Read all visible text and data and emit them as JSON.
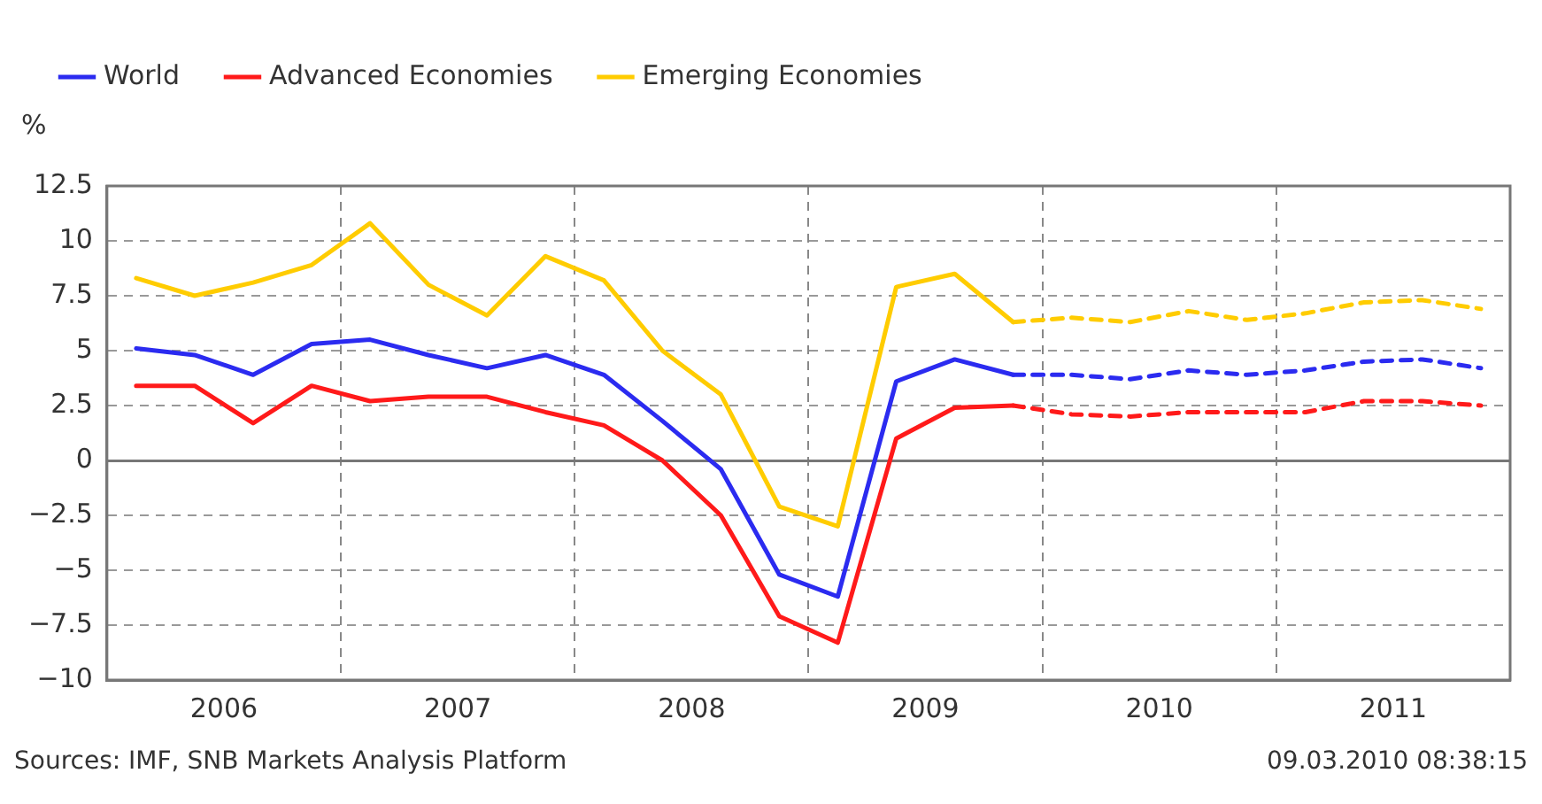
{
  "chart_data": {
    "type": "line",
    "ylabel": "%",
    "legend": "top left",
    "grid": true,
    "line_style": "solid",
    "marker": "none",
    "xlim": [
      2006,
      2012
    ],
    "xticks": [
      {
        "value": 2006.5,
        "label": "2006"
      },
      {
        "value": 2007,
        "label": null
      },
      {
        "value": 2007.5,
        "label": "2007"
      },
      {
        "value": 2008,
        "label": null
      },
      {
        "value": 2008.5,
        "label": "2008"
      },
      {
        "value": 2009,
        "label": null
      },
      {
        "value": 2009.5,
        "label": "2009"
      },
      {
        "value": 2010,
        "label": null
      },
      {
        "value": 2010.5,
        "label": "2010"
      },
      {
        "value": 2011,
        "label": null
      },
      {
        "value": 2011.5,
        "label": "2011"
      }
    ],
    "ylim": [
      -10,
      12.5
    ],
    "yticks": [
      -10,
      -7.5,
      -5,
      -2.5,
      0,
      2.5,
      5,
      7.5,
      10,
      12.5
    ],
    "series": [
      {
        "name": "World",
        "color": "#2b2bf0",
        "x": [
          2006.125,
          2006.375,
          2006.625,
          2006.875,
          2007.125,
          2007.375,
          2007.625,
          2007.875,
          2008.125,
          2008.375,
          2008.625,
          2008.875,
          2009.125,
          2009.375,
          2009.625,
          2009.875
        ],
        "values": [
          5.1,
          4.8,
          3.9,
          5.3,
          5.5,
          4.8,
          4.2,
          4.8,
          3.9,
          1.8,
          -0.4,
          -5.2,
          -6.2,
          3.6,
          4.6,
          3.9
        ]
      },
      {
        "name": "Advanced Economies",
        "color": "#ff1a1a",
        "x": [
          2006.125,
          2006.375,
          2006.625,
          2006.875,
          2007.125,
          2007.375,
          2007.625,
          2007.875,
          2008.125,
          2008.375,
          2008.625,
          2008.875,
          2009.125,
          2009.375,
          2009.625,
          2009.875
        ],
        "values": [
          3.4,
          3.4,
          1.7,
          3.4,
          2.7,
          2.9,
          2.9,
          2.2,
          1.6,
          0,
          -2.5,
          -7.1,
          -8.3,
          1.0,
          2.4,
          2.5
        ]
      },
      {
        "name": "Emerging Economies",
        "color": "#ffcc00",
        "x": [
          2006.125,
          2006.375,
          2006.625,
          2006.875,
          2007.125,
          2007.375,
          2007.625,
          2007.875,
          2008.125,
          2008.375,
          2008.625,
          2008.875,
          2009.125,
          2009.375,
          2009.625,
          2009.875
        ],
        "values": [
          8.3,
          7.5,
          8.1,
          8.9,
          10.8,
          8.0,
          6.6,
          9.3,
          8.2,
          5.0,
          3.0,
          -2.1,
          -3.0,
          7.9,
          8.5,
          6.3
        ]
      },
      {
        "color": "#2b2bf0",
        "line_style": "dashed",
        "x": [
          2009.875,
          2010.125,
          2010.375,
          2010.625,
          2010.875,
          2011.125,
          2011.375,
          2011.625,
          2011.875
        ],
        "values": [
          3.9,
          3.9,
          3.7,
          4.1,
          3.9,
          4.1,
          4.5,
          4.6,
          4.2
        ]
      },
      {
        "color": "#ff1a1a",
        "line_style": "dashed",
        "x": [
          2009.875,
          2010.125,
          2010.375,
          2010.625,
          2010.875,
          2011.125,
          2011.375,
          2011.625,
          2011.875
        ],
        "values": [
          2.5,
          2.1,
          2.0,
          2.2,
          2.2,
          2.2,
          2.7,
          2.7,
          2.5
        ]
      },
      {
        "color": "#ffcc00",
        "line_style": "dashed",
        "x": [
          2009.875,
          2010.125,
          2010.375,
          2010.625,
          2010.875,
          2011.125,
          2011.375,
          2011.625,
          2011.875
        ],
        "values": [
          6.3,
          6.5,
          6.3,
          6.8,
          6.4,
          6.7,
          7.2,
          7.3,
          6.9
        ]
      }
    ],
    "annotations": [
      "Sources: IMF, SNB Markets Analysis Platform",
      "09.03.2010 08:38:15"
    ]
  }
}
